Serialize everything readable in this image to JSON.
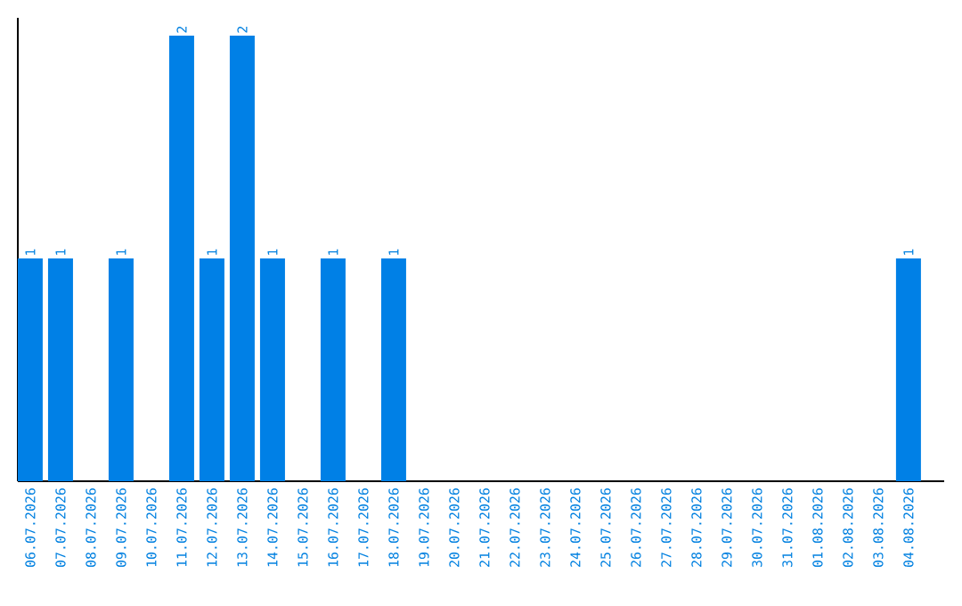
{
  "chart_data": {
    "type": "bar",
    "categories": [
      "06.07.2026",
      "07.07.2026",
      "08.07.2026",
      "09.07.2026",
      "10.07.2026",
      "11.07.2026",
      "12.07.2026",
      "13.07.2026",
      "14.07.2026",
      "15.07.2026",
      "16.07.2026",
      "17.07.2026",
      "18.07.2026",
      "19.07.2026",
      "20.07.2026",
      "21.07.2026",
      "22.07.2026",
      "23.07.2026",
      "24.07.2026",
      "25.07.2026",
      "26.07.2026",
      "27.07.2026",
      "28.07.2026",
      "29.07.2026",
      "30.07.2026",
      "31.07.2026",
      "01.08.2026",
      "02.08.2026",
      "03.08.2026",
      "04.08.2026"
    ],
    "values": [
      1,
      1,
      0,
      1,
      0,
      2,
      1,
      2,
      1,
      0,
      1,
      0,
      1,
      0,
      0,
      0,
      0,
      0,
      0,
      0,
      0,
      0,
      0,
      0,
      0,
      0,
      0,
      0,
      0,
      1
    ],
    "value_labels": [
      "1",
      "1",
      null,
      "1",
      null,
      "2",
      "1",
      "2",
      "1",
      null,
      "1",
      null,
      "1",
      null,
      null,
      null,
      null,
      null,
      null,
      null,
      null,
      null,
      null,
      null,
      null,
      null,
      null,
      null,
      null,
      "1"
    ],
    "color": "#0080e6",
    "ylim": [
      0,
      2.08
    ],
    "tick_labels": "x"
  }
}
